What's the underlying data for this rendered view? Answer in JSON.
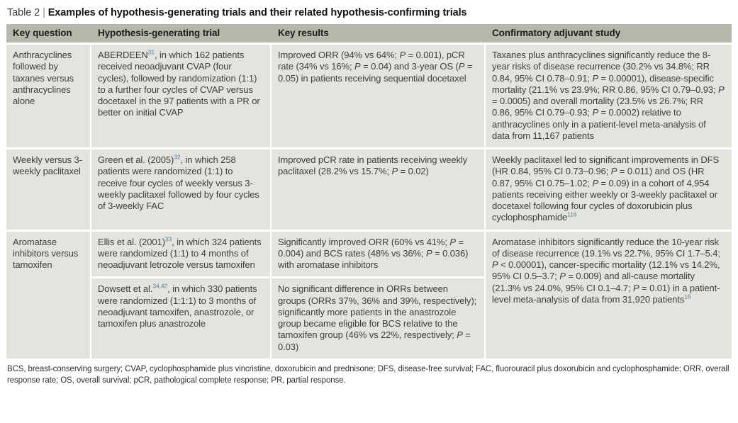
{
  "title": {
    "prefix": "Table 2",
    "separator": "|",
    "text": "Examples of hypothesis-generating trials and their related hypothesis-confirming trials"
  },
  "colors": {
    "header_bg": "#b7b8ab",
    "cell_bg": "#e4e4de",
    "body_text": "#3d3d3d",
    "reference_superscript": "#507d96"
  },
  "table": {
    "headers": [
      "Key question",
      "Hypothesis-generating trial",
      "Key results",
      "Confirmatory adjuvant study"
    ],
    "rows": [
      {
        "key_question": "Anthracyclines followed by taxanes versus anthracyclines alone",
        "trial": [
          {
            "t": "ABERDEEN"
          },
          {
            "t": "31",
            "sup": true
          },
          {
            "t": ", in which 162 patients received neoadjuvant CVAP (four cycles), followed by randomization (1:1) to a further four cycles of CVAP versus docetaxel in the 97 patients with a PR or better on initial CVAP"
          }
        ],
        "results": [
          {
            "t": "Improved ORR (94% vs 64%; "
          },
          {
            "t": "P",
            "i": true
          },
          {
            "t": " = 0.001), pCR rate (34% vs 16%; "
          },
          {
            "t": "P",
            "i": true
          },
          {
            "t": " = 0.04) and 3-year OS ("
          },
          {
            "t": "P",
            "i": true
          },
          {
            "t": " = 0.05) in patients receiving sequential docetaxel"
          }
        ],
        "confirmatory": [
          {
            "t": "Taxanes plus anthracyclines significantly reduce the 8-year risks of disease recurrence (30.2% vs 34.8%; RR 0.84, 95% CI 0.78–0.91; "
          },
          {
            "t": "P",
            "i": true
          },
          {
            "t": " = 0.00001), disease-specific mortality (21.1% vs 23.9%; RR 0.86, 95% CI 0.79–0.93; "
          },
          {
            "t": "P",
            "i": true
          },
          {
            "t": " = 0.0005) and overall mortality (23.5% vs 26.7%; RR 0.86, 95% CI 0.79–0.93; "
          },
          {
            "t": "P",
            "i": true
          },
          {
            "t": " = 0.0002) relative to anthracyclines only in a patient-level meta-analysis of data from 11,167 patients"
          }
        ]
      },
      {
        "key_question": "Weekly versus 3-weekly paclitaxel",
        "trial": [
          {
            "t": "Green et al. (2005)"
          },
          {
            "t": "32",
            "sup": true
          },
          {
            "t": ", in which 258 patients were randomized (1:1) to receive four cycles of weekly versus 3-weekly paclitaxel followed by four cycles of 3-weekly FAC"
          }
        ],
        "results": [
          {
            "t": "Improved pCR rate in patients receiving weekly paclitaxel (28.2% vs 15.7%; "
          },
          {
            "t": "P",
            "i": true
          },
          {
            "t": " = 0.02)"
          }
        ],
        "confirmatory": [
          {
            "t": "Weekly paclitaxel led to significant improvements in DFS (HR 0.84, 95% CI 0.73–0.96; "
          },
          {
            "t": "P",
            "i": true
          },
          {
            "t": " = 0.011) and OS (HR 0.87, 95% CI 0.75–1.02; "
          },
          {
            "t": "P",
            "i": true
          },
          {
            "t": " = 0.09) in a cohort of 4,954 patients receiving either weekly or 3-weekly paclitaxel or docetaxel following four cycles of doxorubicin plus cyclophosphamide"
          },
          {
            "t": "116",
            "sup": true
          }
        ]
      },
      {
        "key_question": "Aromatase inhibitors versus tamoxifen",
        "sub_rows": [
          {
            "trial": [
              {
                "t": "Ellis et al. (2001)"
              },
              {
                "t": "33",
                "sup": true
              },
              {
                "t": ", in which 324 patients were randomized (1:1) to 4 months of neoadjuvant letrozole versus tamoxifen"
              }
            ],
            "results": [
              {
                "t": "Significantly improved ORR (60% vs 41%; "
              },
              {
                "t": "P",
                "i": true
              },
              {
                "t": " = 0.004) and BCS rates (48% vs 36%; "
              },
              {
                "t": "P",
                "i": true
              },
              {
                "t": " = 0.036) with aromatase inhibitors"
              }
            ]
          },
          {
            "trial": [
              {
                "t": "Dowsett et al."
              },
              {
                "t": "34,42",
                "sup": true
              },
              {
                "t": ", in which 330 patients were randomized (1:1:1) to 3 months of neoadjuvant tamoxifen, anastrozole, or tamoxifen plus anastrozole"
              }
            ],
            "results": [
              {
                "t": "No significant difference in ORRs between groups (ORRs 37%, 36% and 39%, respectively); significantly more patients in the anastrozole group became eligible for BCS relative to the tamoxifen group (46% vs 22%, respectively; "
              },
              {
                "t": "P",
                "i": true
              },
              {
                "t": " = 0.03)"
              }
            ]
          }
        ],
        "confirmatory": [
          {
            "t": "Aromatase inhibitors significantly reduce the 10-year risk of disease recurrence (19.1% vs 22.7%, 95% CI 1.7–5.4; "
          },
          {
            "t": "P",
            "i": true
          },
          {
            "t": " < 0.00001), cancer-specific mortality (12.1% vs 14.2%, 95% CI 0.5–3.7; "
          },
          {
            "t": "P",
            "i": true
          },
          {
            "t": " = 0.009) and all-cause mortality (21.3% vs 24.0%, 95% CI 0.1–4.7; "
          },
          {
            "t": "P",
            "i": true
          },
          {
            "t": " = 0.01) in a patient-level meta-analysis of data from 31,920 patients"
          },
          {
            "t": "16",
            "sup": true
          }
        ]
      }
    ],
    "footnote": "BCS, breast-conserving surgery; CVAP, cyclophosphamide plus vincristine, doxorubicin and prednisone; DFS, disease-free survival; FAC, fluorouracil plus doxorubicin and cyclophosphamide; ORR, overall response rate; OS, overall survival; pCR, pathological complete response; PR, partial response."
  }
}
